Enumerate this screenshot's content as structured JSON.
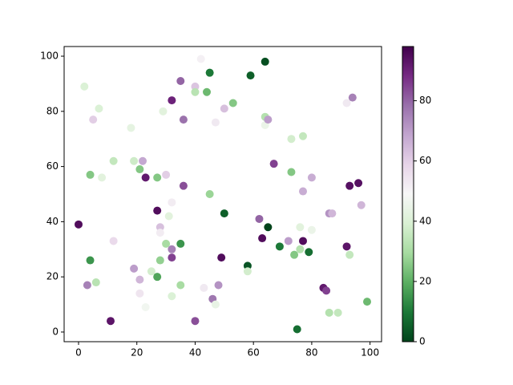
{
  "chart_data": {
    "type": "scatter",
    "colormap": "PRGn_r",
    "x": [
      0,
      2,
      3,
      4,
      4,
      5,
      6,
      7,
      8,
      11,
      12,
      12,
      18,
      19,
      19,
      21,
      21,
      21,
      22,
      23,
      23,
      25,
      27,
      27,
      27,
      28,
      28,
      28,
      29,
      30,
      30,
      31,
      32,
      32,
      32,
      32,
      32,
      35,
      35,
      35,
      36,
      36,
      40,
      40,
      40,
      42,
      43,
      44,
      45,
      45,
      46,
      47,
      47,
      48,
      49,
      50,
      50,
      53,
      58,
      58,
      59,
      62,
      63,
      64,
      64,
      64,
      65,
      65,
      67,
      69,
      72,
      73,
      73,
      74,
      75,
      76,
      76,
      77,
      77,
      77,
      79,
      80,
      80,
      84,
      85,
      86,
      87,
      86,
      89,
      92,
      92,
      93,
      93,
      94,
      96,
      97,
      99
    ],
    "y": [
      39,
      89,
      17,
      26,
      57,
      77,
      18,
      81,
      56,
      4,
      62,
      33,
      74,
      62,
      23,
      59,
      19,
      14,
      62,
      56,
      9,
      22,
      56,
      44,
      20,
      26,
      38,
      36,
      80,
      57,
      32,
      42,
      84,
      30,
      27,
      47,
      13,
      91,
      32,
      17,
      77,
      53,
      89,
      87,
      4,
      99,
      16,
      87,
      94,
      50,
      12,
      76,
      10,
      17,
      27,
      81,
      43,
      83,
      24,
      22,
      93,
      41,
      34,
      98,
      78,
      75,
      77,
      38,
      61,
      31,
      33,
      70,
      58,
      28,
      1,
      38,
      30,
      71,
      51,
      33,
      29,
      56,
      37,
      16,
      15,
      43,
      43,
      7,
      7,
      83,
      31,
      53,
      28,
      85,
      54,
      46,
      11
    ],
    "c": [
      95,
      40,
      75,
      15,
      25,
      60,
      33,
      40,
      42,
      93,
      35,
      57,
      43,
      37,
      70,
      25,
      65,
      54,
      68,
      92,
      47,
      38,
      25,
      95,
      18,
      27,
      63,
      52,
      42,
      60,
      30,
      42,
      90,
      75,
      85,
      52,
      40,
      80,
      15,
      30,
      78,
      83,
      62,
      33,
      83,
      51,
      53,
      22,
      10,
      28,
      77,
      53,
      44,
      72,
      95,
      63,
      5,
      25,
      3,
      38,
      5,
      80,
      95,
      2,
      32,
      45,
      70,
      0,
      85,
      10,
      70,
      38,
      25,
      25,
      8,
      42,
      32,
      35,
      67,
      95,
      8,
      67,
      45,
      92,
      85,
      72,
      65,
      32,
      35,
      53,
      93,
      94,
      35,
      75,
      94,
      65,
      22
    ],
    "xlim": [
      -4.95,
      103.95
    ],
    "ylim": [
      -3.5,
      103.5
    ],
    "xticks": [
      0,
      20,
      40,
      60,
      80,
      100
    ],
    "yticks": [
      0,
      20,
      40,
      60,
      80,
      100
    ],
    "clim": [
      0,
      98
    ],
    "cticks": [
      0,
      20,
      40,
      60,
      80
    ]
  }
}
